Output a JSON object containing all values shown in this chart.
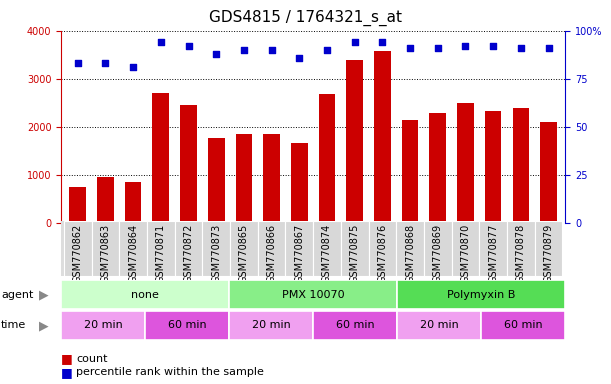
{
  "title": "GDS4815 / 1764321_s_at",
  "samples": [
    "GSM770862",
    "GSM770863",
    "GSM770864",
    "GSM770871",
    "GSM770872",
    "GSM770873",
    "GSM770865",
    "GSM770866",
    "GSM770867",
    "GSM770874",
    "GSM770875",
    "GSM770876",
    "GSM770868",
    "GSM770869",
    "GSM770870",
    "GSM770877",
    "GSM770878",
    "GSM770879"
  ],
  "counts": [
    750,
    950,
    850,
    2700,
    2450,
    1760,
    1850,
    1850,
    1660,
    2680,
    3380,
    3580,
    2150,
    2280,
    2500,
    2320,
    2380,
    2100
  ],
  "percentiles": [
    83,
    83,
    81,
    94,
    92,
    88,
    90,
    90,
    86,
    90,
    94,
    94,
    91,
    91,
    92,
    92,
    91,
    91
  ],
  "bar_color": "#cc0000",
  "dot_color": "#0000cc",
  "ylim_left": [
    0,
    4000
  ],
  "ylim_right": [
    0,
    100
  ],
  "yticks_left": [
    0,
    1000,
    2000,
    3000,
    4000
  ],
  "yticks_right": [
    0,
    25,
    50,
    75,
    100
  ],
  "agent_groups": [
    {
      "label": "none",
      "start": 0,
      "end": 6,
      "color": "#ccffcc"
    },
    {
      "label": "PMX 10070",
      "start": 6,
      "end": 12,
      "color": "#88ee88"
    },
    {
      "label": "Polymyxin B",
      "start": 12,
      "end": 18,
      "color": "#55dd55"
    }
  ],
  "time_groups": [
    {
      "label": "20 min",
      "start": 0,
      "end": 3,
      "color": "#f0a0f0"
    },
    {
      "label": "60 min",
      "start": 3,
      "end": 6,
      "color": "#dd55dd"
    },
    {
      "label": "20 min",
      "start": 6,
      "end": 9,
      "color": "#f0a0f0"
    },
    {
      "label": "60 min",
      "start": 9,
      "end": 12,
      "color": "#dd55dd"
    },
    {
      "label": "20 min",
      "start": 12,
      "end": 15,
      "color": "#f0a0f0"
    },
    {
      "label": "60 min",
      "start": 15,
      "end": 18,
      "color": "#dd55dd"
    }
  ],
  "background_color": "#ffffff",
  "title_fontsize": 11,
  "tick_label_fontsize": 7,
  "row_label_fontsize": 8,
  "cell_label_fontsize": 8
}
